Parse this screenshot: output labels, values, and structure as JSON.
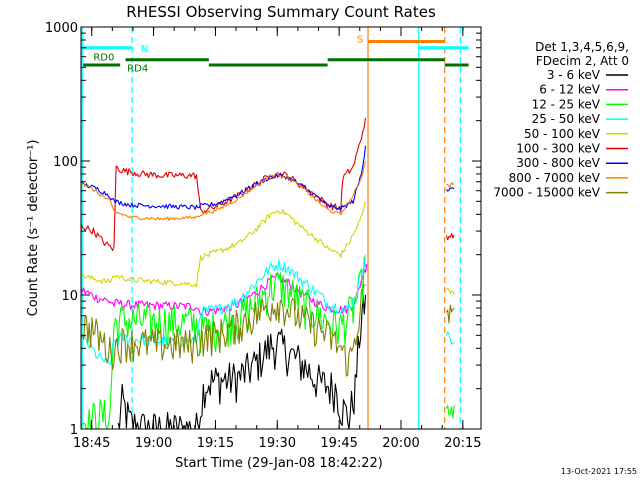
{
  "chart_data": {
    "type": "line",
    "title": "RHESSI Observing Summary Count Rates",
    "xlabel": "Start Time (29-Jan-08 18:42:22)",
    "ylabel": "Count Rate (s⁻¹ detector⁻¹)",
    "x_unit": "minutes after 18:42:22",
    "xlim": [
      0,
      97
    ],
    "ylim": [
      1,
      1000
    ],
    "yscale": "log",
    "x_ticks": [
      {
        "label": "18:45",
        "x": 2.6
      },
      {
        "label": "19:00",
        "x": 17.6
      },
      {
        "label": "19:15",
        "x": 32.6
      },
      {
        "label": "19:30",
        "x": 47.6
      },
      {
        "label": "19:45",
        "x": 62.6
      },
      {
        "label": "20:00",
        "x": 77.6
      },
      {
        "label": "20:15",
        "x": 92.6
      }
    ],
    "y_ticks": [
      {
        "label": "1",
        "y": 1
      },
      {
        "label": "10",
        "y": 10
      },
      {
        "label": "100",
        "y": 100
      },
      {
        "label": "1000",
        "y": 1000
      }
    ],
    "legend": {
      "position": "right",
      "header": [
        "Det 1,3,4,5,6,9,",
        "FDecim 2, Att 0"
      ],
      "entries": [
        {
          "label": "3 - 6 keV",
          "color": "#000000"
        },
        {
          "label": "6 - 12 keV",
          "color": "#ff00ff"
        },
        {
          "label": "12 - 25 keV",
          "color": "#00ff00"
        },
        {
          "label": "25 - 50 keV",
          "color": "#00ffff"
        },
        {
          "label": "50 - 100 keV",
          "color": "#d4d400"
        },
        {
          "label": "100 - 300 keV",
          "color": "#e00000"
        },
        {
          "label": "300 - 800 keV",
          "color": "#0000ff"
        },
        {
          "label": "800 - 7000 keV",
          "color": "#ff8000"
        },
        {
          "label": "7000 - 15000 keV",
          "color": "#808000"
        }
      ]
    },
    "series": [
      {
        "name": "3 - 6 keV",
        "color": "#000000",
        "jitter": 0.35,
        "points": [
          [
            9,
            1
          ],
          [
            10,
            1.6
          ],
          [
            12,
            1.1
          ],
          [
            16,
            1
          ],
          [
            20,
            1
          ],
          [
            28,
            1
          ],
          [
            30,
            2.2
          ],
          [
            33,
            2.3
          ],
          [
            38,
            2.4
          ],
          [
            42,
            3
          ],
          [
            46,
            4.2
          ],
          [
            48,
            4.3
          ],
          [
            50,
            3.8
          ],
          [
            54,
            3
          ],
          [
            58,
            2.2
          ],
          [
            62,
            2
          ],
          [
            63,
            1.5
          ],
          [
            65,
            1.2
          ],
          [
            66.5,
            2
          ],
          [
            67.5,
            5
          ],
          [
            69,
            10
          ]
        ]
      },
      {
        "name": "6 - 12 keV",
        "color": "#ff00ff",
        "jitter": 0.08,
        "points": [
          [
            0,
            11
          ],
          [
            4,
            9.5
          ],
          [
            7,
            9
          ],
          [
            8,
            8.5
          ],
          [
            9,
            8.8
          ],
          [
            10,
            8.5
          ],
          [
            20,
            8.3
          ],
          [
            28,
            8.2
          ],
          [
            29,
            7.5
          ],
          [
            33,
            7.7
          ],
          [
            38,
            8.5
          ],
          [
            42,
            10.2
          ],
          [
            46,
            12.8
          ],
          [
            48,
            13.5
          ],
          [
            50,
            12.5
          ],
          [
            54,
            10
          ],
          [
            58,
            8.5
          ],
          [
            60,
            8
          ],
          [
            63,
            7.8
          ],
          [
            64,
            7.8
          ],
          [
            65,
            8
          ],
          [
            66,
            8.5
          ],
          [
            67,
            10
          ],
          [
            68,
            13
          ],
          [
            69,
            16
          ],
          [
            69.3,
            17
          ]
        ]
      },
      {
        "name": "12 - 25 keV",
        "color": "#00ff00",
        "jitter": 0.35,
        "points": [
          [
            0,
            1.2
          ],
          [
            2,
            1.1
          ],
          [
            4,
            1.3
          ],
          [
            7,
            1.2
          ],
          [
            8,
            6
          ],
          [
            10,
            6.5
          ],
          [
            20,
            6.3
          ],
          [
            28,
            6.2
          ],
          [
            29,
            5.5
          ],
          [
            33,
            5.8
          ],
          [
            38,
            6.7
          ],
          [
            42,
            8.5
          ],
          [
            46,
            11.5
          ],
          [
            48,
            12
          ],
          [
            50,
            11
          ],
          [
            54,
            8.5
          ],
          [
            58,
            7
          ],
          [
            60,
            6.3
          ],
          [
            63,
            5.8
          ],
          [
            64,
            6.5
          ],
          [
            66,
            8
          ],
          [
            68,
            12
          ],
          [
            69,
            16
          ]
        ]
      },
      {
        "name": "25 - 50 keV",
        "color": "#00ffff",
        "jitter": 0.1,
        "points": [
          [
            0,
            5
          ],
          [
            4,
            3.5
          ],
          [
            7,
            3
          ],
          [
            8,
            4.5
          ],
          [
            10,
            4.8
          ],
          [
            15,
            4.6
          ],
          [
            20,
            4.5
          ],
          [
            28,
            4.6
          ],
          [
            29,
            7.5
          ],
          [
            33,
            7.8
          ],
          [
            38,
            9
          ],
          [
            42,
            12
          ],
          [
            46,
            16
          ],
          [
            48,
            17
          ],
          [
            50,
            16
          ],
          [
            54,
            12.5
          ],
          [
            58,
            10
          ],
          [
            60,
            8.5
          ],
          [
            63,
            8
          ],
          [
            64,
            7.5
          ],
          [
            66,
            9
          ],
          [
            67,
            11
          ],
          [
            68,
            15
          ],
          [
            69,
            20
          ]
        ]
      },
      {
        "name": "50 - 100 keV",
        "color": "#d4d400",
        "jitter": 0.05,
        "points": [
          [
            0,
            14
          ],
          [
            4,
            13
          ],
          [
            7,
            12.5
          ],
          [
            8,
            14
          ],
          [
            12,
            13
          ],
          [
            20,
            12.5
          ],
          [
            28,
            12
          ],
          [
            29,
            19
          ],
          [
            33,
            21
          ],
          [
            38,
            24
          ],
          [
            42,
            30
          ],
          [
            46,
            40
          ],
          [
            48,
            43
          ],
          [
            50,
            40
          ],
          [
            54,
            31
          ],
          [
            58,
            25
          ],
          [
            60,
            22
          ],
          [
            63,
            20
          ],
          [
            64,
            22
          ],
          [
            66,
            28
          ],
          [
            68,
            38
          ],
          [
            69,
            50
          ]
        ]
      },
      {
        "name": "100 - 300 keV",
        "color": "#e00000",
        "jitter": 0.06,
        "points": [
          [
            0,
            33
          ],
          [
            3,
            30
          ],
          [
            6,
            24
          ],
          [
            8,
            22
          ],
          [
            8.5,
            90
          ],
          [
            10,
            85
          ],
          [
            15,
            80
          ],
          [
            20,
            78
          ],
          [
            28,
            78
          ],
          [
            29,
            42
          ],
          [
            33,
            46
          ],
          [
            38,
            55
          ],
          [
            42,
            66
          ],
          [
            46,
            78
          ],
          [
            48,
            80
          ],
          [
            50,
            78
          ],
          [
            54,
            64
          ],
          [
            58,
            52
          ],
          [
            60,
            47
          ],
          [
            63,
            44
          ],
          [
            63.5,
            75
          ],
          [
            66,
            90
          ],
          [
            68,
            150
          ],
          [
            69,
            210
          ]
        ]
      },
      {
        "name": "300 - 800 keV",
        "color": "#0000ff",
        "jitter": 0.04,
        "points": [
          [
            0,
            68
          ],
          [
            4,
            62
          ],
          [
            7,
            55
          ],
          [
            8,
            50
          ],
          [
            12,
            47
          ],
          [
            20,
            46
          ],
          [
            28,
            45
          ],
          [
            29,
            46
          ],
          [
            33,
            48
          ],
          [
            38,
            56
          ],
          [
            42,
            66
          ],
          [
            46,
            76
          ],
          [
            48,
            78
          ],
          [
            50,
            76
          ],
          [
            54,
            64
          ],
          [
            58,
            52
          ],
          [
            60,
            46
          ],
          [
            63,
            44
          ],
          [
            66,
            50
          ],
          [
            68,
            80
          ],
          [
            69,
            130
          ]
        ]
      },
      {
        "name": "800 - 7000 keV",
        "color": "#ff8000",
        "jitter": 0.03,
        "points": [
          [
            0,
            70
          ],
          [
            4,
            58
          ],
          [
            7,
            50
          ],
          [
            8,
            42
          ],
          [
            12,
            38
          ],
          [
            20,
            37
          ],
          [
            28,
            38
          ],
          [
            29,
            40
          ],
          [
            33,
            43
          ],
          [
            38,
            52
          ],
          [
            42,
            64
          ],
          [
            46,
            78
          ],
          [
            48,
            80
          ],
          [
            50,
            76
          ],
          [
            54,
            62
          ],
          [
            58,
            48
          ],
          [
            60,
            43
          ],
          [
            63,
            40
          ],
          [
            64,
            45
          ],
          [
            66,
            55
          ],
          [
            68,
            75
          ],
          [
            69,
            100
          ]
        ]
      },
      {
        "name": "7000 - 15000 keV",
        "color": "#808000",
        "jitter": 0.3,
        "points": [
          [
            0,
            6
          ],
          [
            3,
            5.5
          ],
          [
            6,
            4.2
          ],
          [
            7,
            3.8
          ],
          [
            8,
            4
          ],
          [
            10,
            4.5
          ],
          [
            20,
            4.3
          ],
          [
            28,
            4.3
          ],
          [
            29,
            4.8
          ],
          [
            33,
            5
          ],
          [
            38,
            6
          ],
          [
            42,
            7
          ],
          [
            46,
            8.5
          ],
          [
            48,
            8.8
          ],
          [
            50,
            8
          ],
          [
            54,
            6.5
          ],
          [
            58,
            5.5
          ],
          [
            60,
            5
          ],
          [
            63,
            4
          ],
          [
            64,
            3.5
          ],
          [
            65,
            3.2
          ],
          [
            66,
            4
          ],
          [
            67,
            6
          ],
          [
            68,
            9
          ],
          [
            69,
            12
          ]
        ]
      },
      {
        "name": "12 - 25 keV (late)",
        "color": "#00ff00",
        "jitter": 0.3,
        "points": [
          [
            88.6,
            1.2
          ],
          [
            90.5,
            1.5
          ]
        ]
      },
      {
        "name": "25 - 50 keV (late)",
        "color": "#00ffff",
        "jitter": 0.1,
        "points": [
          [
            88.6,
            5
          ],
          [
            90.5,
            4.5
          ]
        ]
      },
      {
        "name": "50 - 100 keV (late)",
        "color": "#d4d400",
        "jitter": 0.05,
        "points": [
          [
            88.6,
            11
          ],
          [
            90.5,
            10
          ]
        ]
      },
      {
        "name": "100 - 300 keV (late)",
        "color": "#e00000",
        "jitter": 0.05,
        "points": [
          [
            88.6,
            27
          ],
          [
            90.5,
            28
          ]
        ]
      },
      {
        "name": "300 - 800 keV (late)",
        "color": "#0000ff",
        "jitter": 0.04,
        "points": [
          [
            88.6,
            60
          ],
          [
            90.5,
            62
          ]
        ]
      },
      {
        "name": "800 - 7000 keV (late)",
        "color": "#ff8000",
        "jitter": 0.03,
        "points": [
          [
            88.6,
            66
          ],
          [
            90.5,
            68
          ]
        ]
      },
      {
        "name": "7000 - 15000 keV (late)",
        "color": "#808000",
        "jitter": 0.2,
        "points": [
          [
            88.6,
            7.5
          ],
          [
            90.5,
            8
          ]
        ]
      }
    ],
    "vertical_lines": [
      {
        "x": 0.3,
        "color": "#00ffff",
        "dashed": false
      },
      {
        "x": 12.4,
        "color": "#00ffff",
        "dashed": true
      },
      {
        "x": 69.6,
        "color": "#ff8000",
        "dashed": false
      },
      {
        "x": 81.9,
        "color": "#00ffff",
        "dashed": false
      },
      {
        "x": 88.2,
        "color": "#ff8000",
        "dashed": true
      },
      {
        "x": 92.0,
        "color": "#00ffff",
        "dashed": true
      }
    ],
    "flag_bars": [
      {
        "x0": 0.5,
        "x1": 12.4,
        "y": 700,
        "color": "#00ffff",
        "label": "N",
        "label_x": 14.5
      },
      {
        "x0": 0.5,
        "x1": 9.5,
        "y": 520,
        "color": "#007000",
        "label": "RD0",
        "label_x": 3.0,
        "label_y": 600
      },
      {
        "x0": 10.8,
        "x1": 31.0,
        "y": 570,
        "color": "#007000",
        "label": "RD4",
        "label_x": 11.2,
        "label_y": 500
      },
      {
        "x0": 31.0,
        "x1": 59.8,
        "y": 520,
        "color": "#007000"
      },
      {
        "x0": 59.8,
        "x1": 88.2,
        "y": 570,
        "color": "#007000"
      },
      {
        "x0": 88.2,
        "x1": 94.0,
        "y": 520,
        "color": "#007000"
      },
      {
        "x0": 69.6,
        "x1": 88.2,
        "y": 780,
        "color": "#ff8000",
        "label": "S",
        "label_x": 66.9,
        "label_y": 820
      },
      {
        "x0": 82.0,
        "x1": 94.0,
        "y": 700,
        "color": "#00ffff"
      }
    ]
  },
  "footer": {
    "timestamp": "13-Oct-2021 17:55"
  }
}
